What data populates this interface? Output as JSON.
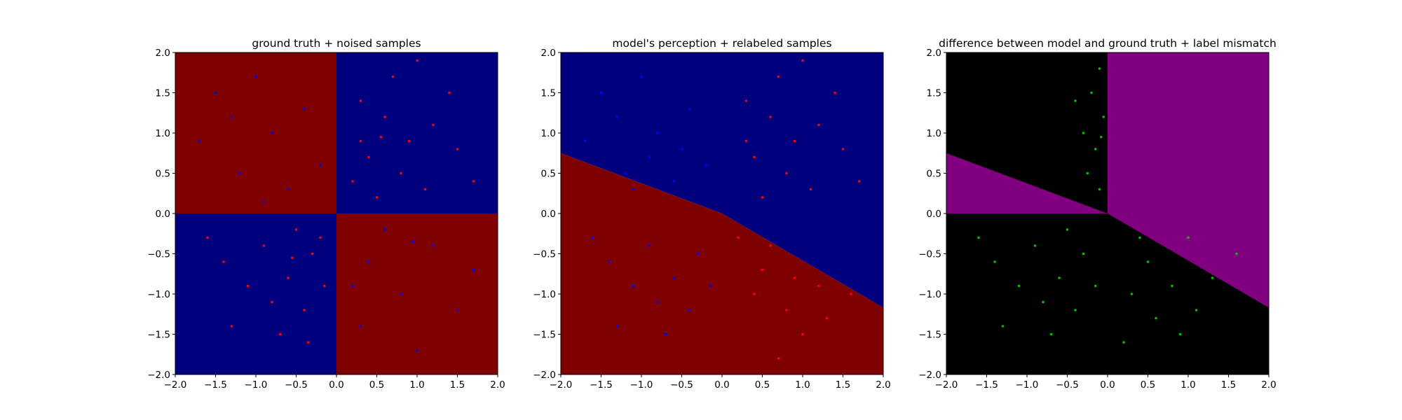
{
  "colors": {
    "region_red": "#7f0000",
    "region_blue": "#00007f",
    "region_black": "#000000",
    "region_purple": "#800080",
    "point_red": "#ff0000",
    "point_blue": "#0000ff",
    "point_green": "#00c000"
  },
  "chart_data": [
    {
      "type": "scatter",
      "title": "ground truth + noised samples",
      "xlim": [
        -2.0,
        2.0
      ],
      "ylim": [
        -2.0,
        2.0
      ],
      "xticks": [
        "−2.0",
        "−1.5",
        "−1.0",
        "−0.5",
        "0.0",
        "0.5",
        "1.0",
        "1.5",
        "2.0"
      ],
      "yticks": [
        "−2.0",
        "−1.5",
        "−1.0",
        "−0.5",
        "0.0",
        "0.5",
        "1.0",
        "1.5",
        "2.0"
      ],
      "xtick_values": [
        -2.0,
        -1.5,
        -1.0,
        -0.5,
        0.0,
        0.5,
        1.0,
        1.5,
        2.0
      ],
      "ytick_values": [
        -2.0,
        -1.5,
        -1.0,
        -0.5,
        0.0,
        0.5,
        1.0,
        1.5,
        2.0
      ],
      "background_regions": {
        "rule": "sign(x*y): red where x*y<0, blue where x*y>0",
        "quadrants": {
          "top_left": "red",
          "top_right": "blue",
          "bottom_left": "blue",
          "bottom_right": "red"
        }
      },
      "series": [
        {
          "color": "red",
          "points": [
            [
              0.3,
              1.4
            ],
            [
              0.6,
              1.2
            ],
            [
              0.9,
              0.9
            ],
            [
              1.2,
              1.1
            ],
            [
              0.4,
              0.7
            ],
            [
              0.8,
              0.5
            ],
            [
              1.5,
              0.8
            ],
            [
              0.2,
              0.4
            ],
            [
              1.1,
              0.3
            ],
            [
              0.5,
              0.2
            ],
            [
              1.4,
              1.5
            ],
            [
              0.7,
              1.7
            ],
            [
              1.0,
              1.9
            ],
            [
              0.3,
              0.9
            ],
            [
              1.7,
              0.4
            ],
            [
              -0.3,
              -0.5
            ],
            [
              -0.6,
              -0.8
            ],
            [
              -0.9,
              -0.4
            ],
            [
              -0.4,
              -1.2
            ],
            [
              -0.2,
              -0.3
            ],
            [
              -1.1,
              -0.9
            ],
            [
              -0.7,
              -1.5
            ],
            [
              -0.5,
              -0.2
            ],
            [
              -1.4,
              -0.6
            ],
            [
              -0.8,
              -1.1
            ],
            [
              -1.3,
              -1.4
            ],
            [
              -0.15,
              -0.9
            ],
            [
              -0.35,
              -1.6
            ],
            [
              -1.6,
              -0.3
            ],
            [
              0.55,
              0.95
            ],
            [
              -0.55,
              -0.55
            ]
          ]
        },
        {
          "color": "blue",
          "points": [
            [
              -1.5,
              1.5
            ],
            [
              -0.8,
              1.0
            ],
            [
              -1.2,
              0.5
            ],
            [
              -0.4,
              1.3
            ],
            [
              -1.7,
              0.9
            ],
            [
              -0.6,
              0.3
            ],
            [
              -1.0,
              1.7
            ],
            [
              -0.2,
              0.6
            ],
            [
              -1.3,
              1.2
            ],
            [
              0.4,
              -0.6
            ],
            [
              0.8,
              -1.0
            ],
            [
              1.2,
              -0.4
            ],
            [
              0.3,
              -1.4
            ],
            [
              1.5,
              -1.2
            ],
            [
              0.6,
              -0.2
            ],
            [
              1.0,
              -1.7
            ],
            [
              0.2,
              -0.9
            ],
            [
              1.7,
              -0.7
            ],
            [
              -0.9,
              0.15
            ],
            [
              0.95,
              -0.35
            ]
          ]
        }
      ]
    },
    {
      "type": "scatter",
      "title": "model's perception + relabeled samples",
      "xlim": [
        -2.0,
        2.0
      ],
      "ylim": [
        -2.0,
        2.0
      ],
      "xticks": [
        "−2.0",
        "−1.5",
        "−1.0",
        "−0.5",
        "0.0",
        "0.5",
        "1.0",
        "1.5",
        "2.0"
      ],
      "yticks": [
        "−2.0",
        "−1.5",
        "−1.0",
        "−0.5",
        "0.0",
        "0.5",
        "1.0",
        "1.5",
        "2.0"
      ],
      "xtick_values": [
        -2.0,
        -1.5,
        -1.0,
        -0.5,
        0.0,
        0.5,
        1.0,
        1.5,
        2.0
      ],
      "ytick_values": [
        -2.0,
        -1.5,
        -1.0,
        -0.5,
        0.0,
        0.5,
        1.0,
        1.5,
        2.0
      ],
      "background_regions": {
        "rule": "blue above boundary line, red below",
        "boundary": [
          [
            -2.0,
            0.75
          ],
          [
            0.0,
            0.0
          ],
          [
            2.0,
            -1.17
          ]
        ]
      },
      "series": [
        {
          "color": "red",
          "points": [
            [
              0.3,
              1.4
            ],
            [
              0.6,
              1.2
            ],
            [
              0.9,
              0.9
            ],
            [
              1.2,
              1.1
            ],
            [
              0.4,
              0.7
            ],
            [
              0.8,
              0.5
            ],
            [
              1.5,
              0.8
            ],
            [
              0.5,
              0.2
            ],
            [
              1.4,
              1.5
            ],
            [
              0.7,
              1.7
            ],
            [
              1.0,
              1.9
            ],
            [
              0.3,
              0.9
            ],
            [
              1.7,
              0.4
            ],
            [
              1.1,
              0.3
            ],
            [
              0.6,
              -0.4
            ],
            [
              0.9,
              -0.8
            ],
            [
              1.3,
              -1.3
            ],
            [
              0.4,
              -1.0
            ],
            [
              1.0,
              -1.5
            ],
            [
              0.7,
              -1.8
            ],
            [
              1.6,
              -1.0
            ],
            [
              0.2,
              -0.3
            ],
            [
              1.2,
              -0.9
            ],
            [
              0.5,
              -0.7
            ],
            [
              0.8,
              -1.2
            ]
          ]
        },
        {
          "color": "blue",
          "points": [
            [
              -1.5,
              1.5
            ],
            [
              -0.8,
              1.0
            ],
            [
              -1.2,
              0.5
            ],
            [
              -0.4,
              1.3
            ],
            [
              -1.7,
              0.9
            ],
            [
              -0.6,
              0.4
            ],
            [
              -1.0,
              1.7
            ],
            [
              -0.2,
              0.6
            ],
            [
              -1.3,
              1.2
            ],
            [
              -0.9,
              0.7
            ],
            [
              -0.5,
              0.8
            ],
            [
              -1.1,
              0.3
            ],
            [
              -0.3,
              -0.5
            ],
            [
              -0.6,
              -0.8
            ],
            [
              -0.9,
              -0.4
            ],
            [
              -0.4,
              -1.2
            ],
            [
              -1.1,
              -0.9
            ],
            [
              -0.7,
              -1.5
            ],
            [
              -1.4,
              -0.6
            ],
            [
              -0.8,
              -1.1
            ],
            [
              -1.3,
              -1.4
            ],
            [
              -0.15,
              -0.9
            ],
            [
              -1.6,
              -0.3
            ]
          ]
        }
      ]
    },
    {
      "type": "scatter",
      "title": "difference between model and ground truth + label mismatch",
      "xlim": [
        -2.0,
        2.0
      ],
      "ylim": [
        -2.0,
        2.0
      ],
      "xticks": [
        "−2.0",
        "−1.5",
        "−1.0",
        "−0.5",
        "0.0",
        "0.5",
        "1.0",
        "1.5",
        "2.0"
      ],
      "yticks": [
        "−2.0",
        "−1.5",
        "−1.0",
        "−0.5",
        "0.0",
        "0.5",
        "1.0",
        "1.5",
        "2.0"
      ],
      "xtick_values": [
        -2.0,
        -1.5,
        -1.0,
        -0.5,
        0.0,
        0.5,
        1.0,
        1.5,
        2.0
      ],
      "ytick_values": [
        -2.0,
        -1.5,
        -1.0,
        -0.5,
        0.0,
        0.5,
        1.0,
        1.5,
        2.0
      ],
      "background_regions": {
        "rule": "purple where model disagrees with ground truth, black elsewhere",
        "purple_polygons": [
          [
            [
              0.0,
              0.0
            ],
            [
              0.0,
              2.0
            ],
            [
              2.0,
              2.0
            ],
            [
              2.0,
              0.0
            ]
          ],
          [
            [
              -2.0,
              0.0
            ],
            [
              -2.0,
              0.75
            ],
            [
              0.0,
              0.0
            ]
          ],
          [
            [
              0.0,
              0.0
            ],
            [
              2.0,
              -1.17
            ],
            [
              2.0,
              0.0
            ]
          ]
        ]
      },
      "series": [
        {
          "color": "green",
          "points": [
            [
              -0.1,
              1.8
            ],
            [
              -0.2,
              1.5
            ],
            [
              -0.05,
              1.2
            ],
            [
              -0.3,
              1.0
            ],
            [
              -0.15,
              0.8
            ],
            [
              -0.25,
              0.5
            ],
            [
              -0.1,
              0.3
            ],
            [
              -0.4,
              1.4
            ],
            [
              -0.08,
              0.95
            ],
            [
              -0.3,
              -0.5
            ],
            [
              -0.6,
              -0.8
            ],
            [
              -0.9,
              -0.4
            ],
            [
              -0.4,
              -1.2
            ],
            [
              -1.1,
              -0.9
            ],
            [
              -0.7,
              -1.5
            ],
            [
              -1.4,
              -0.6
            ],
            [
              -0.8,
              -1.1
            ],
            [
              -1.3,
              -1.4
            ],
            [
              -0.15,
              -0.9
            ],
            [
              -1.6,
              -0.3
            ],
            [
              -0.5,
              -0.2
            ],
            [
              0.5,
              -0.6
            ],
            [
              0.8,
              -0.9
            ],
            [
              1.1,
              -1.2
            ],
            [
              0.3,
              -1.0
            ],
            [
              1.3,
              -0.8
            ],
            [
              0.9,
              -1.5
            ],
            [
              0.6,
              -1.3
            ],
            [
              1.6,
              -0.5
            ],
            [
              0.4,
              -0.3
            ],
            [
              1.0,
              -0.3
            ],
            [
              0.2,
              -1.6
            ]
          ]
        }
      ]
    }
  ]
}
